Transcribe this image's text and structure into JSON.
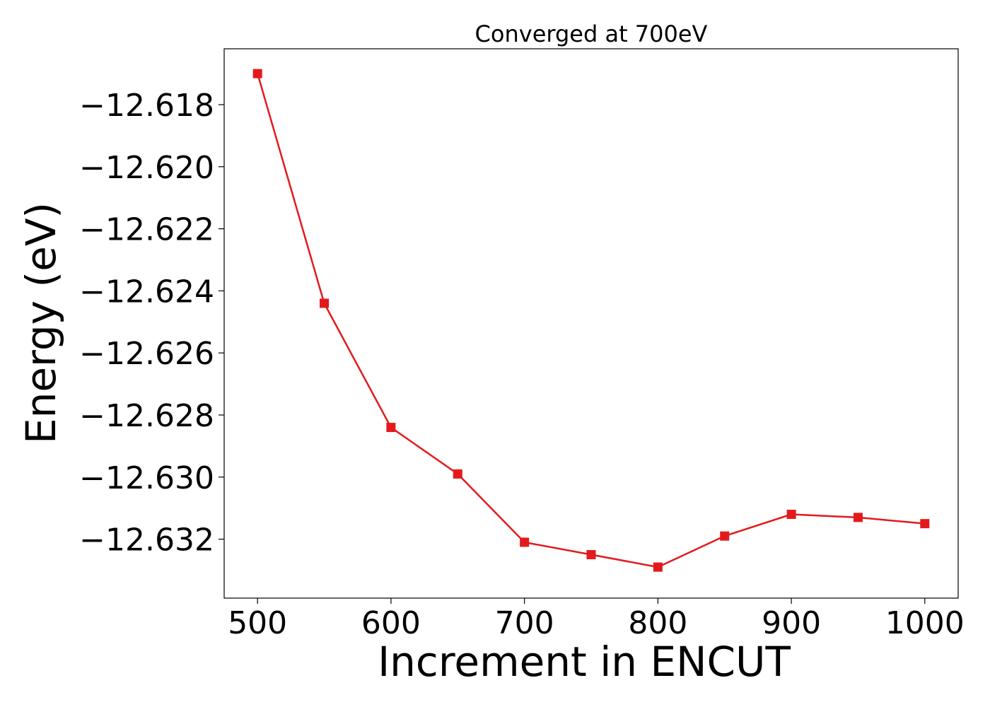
{
  "chart_data": {
    "type": "line",
    "title": "Converged at 700eV",
    "xlabel": "Increment in ENCUT",
    "ylabel": "Energy (eV)",
    "x": [
      500,
      550,
      600,
      650,
      700,
      750,
      800,
      850,
      900,
      950,
      1000
    ],
    "series": [
      {
        "values": [
          -12.617,
          -12.6244,
          -12.6284,
          -12.6299,
          -12.6321,
          -12.6325,
          -12.6329,
          -12.6319,
          -12.6312,
          -12.6313,
          -12.6315
        ]
      }
    ],
    "xlim": [
      475,
      1025
    ],
    "ylim": [
      -12.6339,
      -12.6162
    ],
    "xticks": [
      500,
      600,
      700,
      800,
      900,
      1000
    ],
    "xtick_labels": [
      "500",
      "600",
      "700",
      "800",
      "900",
      "1000"
    ],
    "yticks": [
      -12.618,
      -12.62,
      -12.622,
      -12.624,
      -12.626,
      -12.628,
      -12.63,
      -12.632
    ],
    "ytick_labels": [
      "−12.618",
      "−12.620",
      "−12.622",
      "−12.624",
      "−12.626",
      "−12.628",
      "−12.630",
      "−12.632"
    ],
    "grid": false,
    "colors": {
      "series": "#e31a1c",
      "axes": "#000000"
    },
    "marker": "square"
  }
}
